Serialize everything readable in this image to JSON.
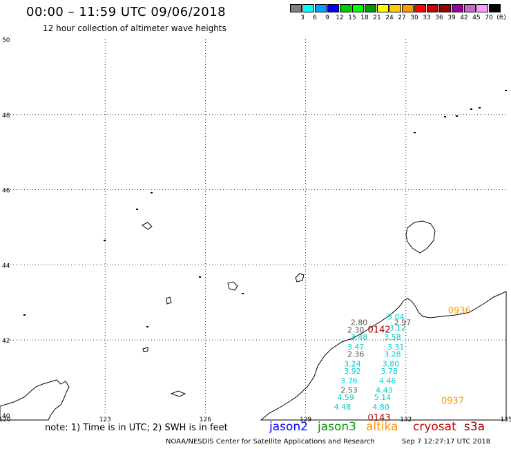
{
  "header": {
    "title": "00:00 – 11:59 UTC 09/06/2018",
    "subtitle": "12 hour collection of altimeter wave heights"
  },
  "colorbar": {
    "colors": [
      "#7f7f7f",
      "#00ffff",
      "#00a0ff",
      "#0000ff",
      "#00cc00",
      "#00ff00",
      "#009900",
      "#ffff00",
      "#ffcc00",
      "#ff9900",
      "#ff0000",
      "#cc0000",
      "#990000",
      "#990099",
      "#cc66cc",
      "#ff99ff",
      "#000000"
    ],
    "labels": [
      "3",
      "6",
      "9",
      "12",
      "15",
      "18",
      "21",
      "24",
      "27",
      "30",
      "33",
      "36",
      "39",
      "42",
      "45",
      "70",
      "(ft)"
    ]
  },
  "map": {
    "x_range": [
      120,
      135
    ],
    "y_range": [
      40,
      50
    ],
    "lat_labels": [
      "50",
      "48",
      "46",
      "44",
      "42",
      "40"
    ],
    "lon_labels": [
      "120",
      "123",
      "126",
      "129",
      "132",
      "135"
    ]
  },
  "tracks": [
    {
      "label": "0936",
      "label_color": "#ff9900",
      "lon": 133.6,
      "lat": 42.7
    },
    {
      "label": "0142",
      "label_color": "#990000",
      "lon": 131.2,
      "lat": 42.2
    },
    {
      "label": "0937",
      "label_color": "#ff9900",
      "lon": 133.4,
      "lat": 40.3
    },
    {
      "label": "0143",
      "label_color": "#990000",
      "lon": 131.2,
      "lat": 39.85
    }
  ],
  "observations": [
    {
      "v": "3.04",
      "c": "#00cccc",
      "lon": 131.7,
      "lat": 42.55
    },
    {
      "v": "2.80",
      "c": "#555555",
      "lon": 130.6,
      "lat": 42.4
    },
    {
      "v": "2.97",
      "c": "#555555",
      "lon": 131.9,
      "lat": 42.4
    },
    {
      "v": "2.30",
      "c": "#555555",
      "lon": 130.5,
      "lat": 42.2
    },
    {
      "v": "3.12",
      "c": "#00cccc",
      "lon": 131.75,
      "lat": 42.25
    },
    {
      "v": "3.48",
      "c": "#00cccc",
      "lon": 130.6,
      "lat": 42.0
    },
    {
      "v": "3.58",
      "c": "#00cccc",
      "lon": 131.6,
      "lat": 42.0
    },
    {
      "v": "3.47",
      "c": "#00cccc",
      "lon": 130.5,
      "lat": 41.75
    },
    {
      "v": "3.31",
      "c": "#00cccc",
      "lon": 131.7,
      "lat": 41.75
    },
    {
      "v": "2.36",
      "c": "#555555",
      "lon": 130.5,
      "lat": 41.55
    },
    {
      "v": "3.28",
      "c": "#00cccc",
      "lon": 131.6,
      "lat": 41.55
    },
    {
      "v": "3.24",
      "c": "#00cccc",
      "lon": 130.4,
      "lat": 41.3
    },
    {
      "v": "3.80",
      "c": "#00cccc",
      "lon": 131.55,
      "lat": 41.3
    },
    {
      "v": "3.92",
      "c": "#00cccc",
      "lon": 130.4,
      "lat": 41.1
    },
    {
      "v": "3.78",
      "c": "#00cccc",
      "lon": 131.5,
      "lat": 41.1
    },
    {
      "v": "3.76",
      "c": "#00cccc",
      "lon": 130.3,
      "lat": 40.85
    },
    {
      "v": "4.46",
      "c": "#00cccc",
      "lon": 131.45,
      "lat": 40.85
    },
    {
      "v": "2.53",
      "c": "#555555",
      "lon": 130.3,
      "lat": 40.6
    },
    {
      "v": "4.43",
      "c": "#00cccc",
      "lon": 131.35,
      "lat": 40.6
    },
    {
      "v": "4.59",
      "c": "#00cccc",
      "lon": 130.2,
      "lat": 40.4
    },
    {
      "v": "5.14",
      "c": "#00cccc",
      "lon": 131.3,
      "lat": 40.4
    },
    {
      "v": "4.48",
      "c": "#00cccc",
      "lon": 130.1,
      "lat": 40.15
    },
    {
      "v": "4.80",
      "c": "#00cccc",
      "lon": 131.25,
      "lat": 40.15
    }
  ],
  "footer": {
    "note": "note: 1) Time is in UTC; 2) SWH is in feet",
    "satellites": [
      {
        "name": "jason2",
        "color": "#0000ff"
      },
      {
        "name": "jason3",
        "color": "#009900"
      },
      {
        "name": "altika",
        "color": "#ff9900"
      },
      {
        "name": "cryosat",
        "color": "#cc0000"
      },
      {
        "name": "s3a",
        "color": "#990000"
      }
    ],
    "credit": "NOAA/NESDIS Center for Satellite Applications and Research",
    "timestamp": "Sep  7 12:27:17 UTC 2018"
  }
}
